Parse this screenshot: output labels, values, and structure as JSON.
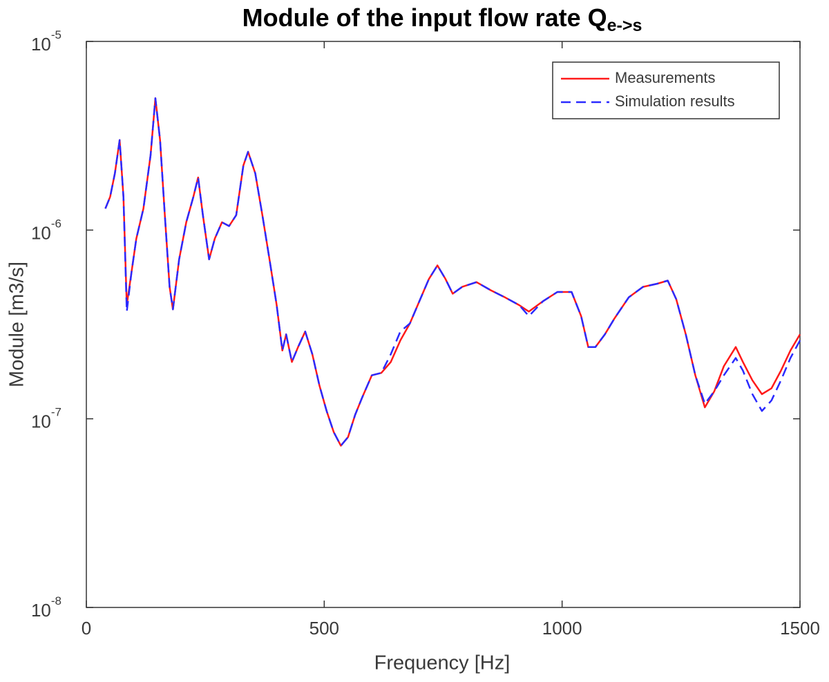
{
  "chart_data": {
    "type": "line",
    "title": "Module of the input flow rate Q",
    "title_subscript": "e->s",
    "x_label": "Frequency [Hz]",
    "y_label": "Module [m3/s]",
    "xlim": [
      0,
      1500
    ],
    "xticks": [
      0,
      500,
      1000,
      1500
    ],
    "ylim": [
      1e-08,
      1e-05
    ],
    "yscale": "log",
    "yticks": [
      {
        "value": 1e-08,
        "label": "10",
        "exponent": "-8"
      },
      {
        "value": 1e-07,
        "label": "10",
        "exponent": "-7"
      },
      {
        "value": 1e-06,
        "label": "10",
        "exponent": "-6"
      },
      {
        "value": 1e-05,
        "label": "10",
        "exponent": "-5"
      }
    ],
    "legend": "upper right",
    "grid": false,
    "x": [
      40,
      50,
      60,
      70,
      78,
      85,
      95,
      105,
      120,
      135,
      145,
      155,
      165,
      175,
      182,
      195,
      210,
      225,
      235,
      245,
      258,
      270,
      285,
      300,
      315,
      330,
      340,
      355,
      370,
      385,
      400,
      412,
      420,
      432,
      445,
      460,
      475,
      490,
      505,
      520,
      535,
      550,
      565,
      580,
      600,
      620,
      640,
      660,
      680,
      700,
      720,
      738,
      755,
      770,
      790,
      820,
      850,
      880,
      910,
      930,
      960,
      990,
      1020,
      1040,
      1055,
      1070,
      1090,
      1110,
      1140,
      1170,
      1200,
      1222,
      1240,
      1260,
      1280,
      1300,
      1320,
      1340,
      1365,
      1380,
      1400,
      1420,
      1440,
      1460,
      1480,
      1500
    ],
    "series": [
      {
        "name": "Measurements",
        "color": "#ff1a1a",
        "line_style": "solid",
        "values": [
          1.3e-06,
          1.5e-06,
          2e-06,
          3e-06,
          1.5e-06,
          4e-07,
          6e-07,
          9e-07,
          1.3e-06,
          2.5e-06,
          5e-06,
          3e-06,
          1.2e-06,
          5e-07,
          3.8e-07,
          7e-07,
          1.1e-06,
          1.5e-06,
          1.9e-06,
          1.2e-06,
          7e-07,
          9e-07,
          1.1e-06,
          1.05e-06,
          1.2e-06,
          2.2e-06,
          2.6e-06,
          2e-06,
          1.2e-06,
          7e-07,
          4e-07,
          2.3e-07,
          2.8e-07,
          2e-07,
          2.4e-07,
          2.9e-07,
          2.2e-07,
          1.5e-07,
          1.1e-07,
          8.5e-08,
          7.2e-08,
          8e-08,
          1.05e-07,
          1.3e-07,
          1.7e-07,
          1.75e-07,
          2e-07,
          2.6e-07,
          3.2e-07,
          4.2e-07,
          5.5e-07,
          6.5e-07,
          5.5e-07,
          4.6e-07,
          5e-07,
          5.3e-07,
          4.8e-07,
          4.4e-07,
          4e-07,
          3.7e-07,
          4.2e-07,
          4.7e-07,
          4.7e-07,
          3.5e-07,
          2.4e-07,
          2.4e-07,
          2.8e-07,
          3.4e-07,
          4.4e-07,
          5e-07,
          5.2e-07,
          5.4e-07,
          4.3e-07,
          2.8e-07,
          1.7e-07,
          1.15e-07,
          1.4e-07,
          1.9e-07,
          2.4e-07,
          2e-07,
          1.6e-07,
          1.35e-07,
          1.45e-07,
          1.8e-07,
          2.3e-07,
          2.8e-07
        ]
      },
      {
        "name": "Simulation results",
        "color": "#2a2aff",
        "line_style": "dashed",
        "values": [
          1.3e-06,
          1.5e-06,
          2e-06,
          3e-06,
          1.5e-06,
          3.7e-07,
          6e-07,
          9e-07,
          1.3e-06,
          2.5e-06,
          5e-06,
          3e-06,
          1.2e-06,
          5e-07,
          3.8e-07,
          7e-07,
          1.1e-06,
          1.5e-06,
          1.9e-06,
          1.2e-06,
          7e-07,
          9e-07,
          1.1e-06,
          1.05e-06,
          1.2e-06,
          2.2e-06,
          2.6e-06,
          2e-06,
          1.2e-06,
          7e-07,
          4e-07,
          2.3e-07,
          2.8e-07,
          2e-07,
          2.4e-07,
          2.9e-07,
          2.2e-07,
          1.5e-07,
          1.1e-07,
          8.5e-08,
          7.2e-08,
          8e-08,
          1.05e-07,
          1.3e-07,
          1.7e-07,
          1.75e-07,
          2.2e-07,
          2.9e-07,
          3.2e-07,
          4.2e-07,
          5.5e-07,
          6.5e-07,
          5.5e-07,
          4.6e-07,
          5e-07,
          5.3e-07,
          4.8e-07,
          4.4e-07,
          4e-07,
          3.5e-07,
          4.2e-07,
          4.7e-07,
          4.7e-07,
          3.5e-07,
          2.4e-07,
          2.4e-07,
          2.8e-07,
          3.4e-07,
          4.4e-07,
          5e-07,
          5.2e-07,
          5.4e-07,
          4.3e-07,
          2.8e-07,
          1.7e-07,
          1.2e-07,
          1.4e-07,
          1.7e-07,
          2.1e-07,
          1.8e-07,
          1.35e-07,
          1.1e-07,
          1.25e-07,
          1.6e-07,
          2.1e-07,
          2.6e-07
        ]
      }
    ]
  }
}
